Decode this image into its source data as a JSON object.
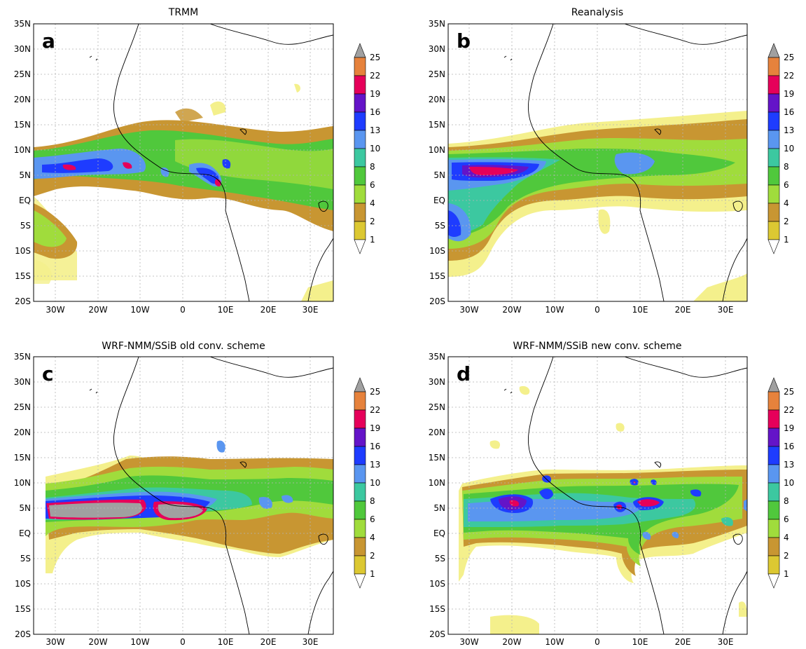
{
  "figure": {
    "panels": [
      {
        "id": "a",
        "title": "TRMM",
        "letter": "a"
      },
      {
        "id": "b",
        "title": "Reanalysis",
        "letter": "b"
      },
      {
        "id": "c",
        "title": "WRF-NMM/SSiB old conv. scheme",
        "letter": "c"
      },
      {
        "id": "d",
        "title": "WRF-NMM/SSiB new conv. scheme",
        "letter": "d"
      }
    ],
    "lat_ticks": [
      "35N",
      "30N",
      "25N",
      "20N",
      "15N",
      "10N",
      "5N",
      "EQ",
      "5S",
      "10S",
      "15S",
      "20S"
    ],
    "lon_ticks": [
      "30W",
      "20W",
      "10W",
      "0",
      "10E",
      "20E",
      "30E"
    ],
    "colorbar": {
      "levels": [
        "1",
        "2",
        "4",
        "6",
        "8",
        "10",
        "13",
        "16",
        "19",
        "22",
        "25"
      ],
      "colors": [
        "#f4f08c",
        "#dcc832",
        "#c89632",
        "#a0dc3c",
        "#50c83c",
        "#3cc8a0",
        "#5a96f0",
        "#1e3cff",
        "#6414c8",
        "#e6005a",
        "#e6823c",
        "#a0a0a0"
      ]
    },
    "colors": {
      "coast": "#000000",
      "grid": "#b4b4b4"
    }
  }
}
